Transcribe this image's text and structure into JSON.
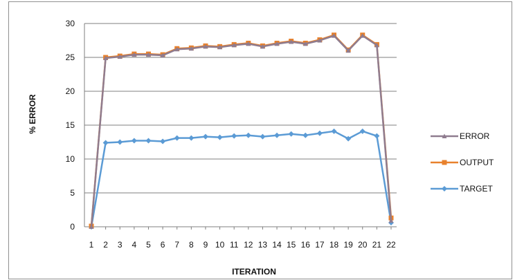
{
  "chart_data": {
    "type": "line",
    "title": "",
    "xlabel": "ITERATION",
    "ylabel": "% ERROR",
    "categories": [
      "1",
      "2",
      "3",
      "4",
      "5",
      "6",
      "7",
      "8",
      "9",
      "10",
      "11",
      "12",
      "13",
      "14",
      "15",
      "16",
      "17",
      "18",
      "19",
      "20",
      "21",
      "22"
    ],
    "ylim": [
      0,
      30
    ],
    "yticks": [
      0,
      5,
      10,
      15,
      20,
      25,
      30
    ],
    "grid": true,
    "legend_position": "right",
    "series": [
      {
        "name": "ERROR",
        "color": "#8f7c8f",
        "marker": "triangle",
        "values": [
          0,
          24.9,
          25.1,
          25.4,
          25.4,
          25.3,
          26.2,
          26.3,
          26.6,
          26.5,
          26.8,
          27.0,
          26.6,
          27.0,
          27.3,
          27.0,
          27.5,
          28.2,
          26.0,
          28.2,
          26.8,
          0.9
        ]
      },
      {
        "name": "OUTPUT",
        "color": "#e8812c",
        "marker": "square",
        "values": [
          0.1,
          25.0,
          25.2,
          25.5,
          25.5,
          25.4,
          26.3,
          26.4,
          26.7,
          26.6,
          26.9,
          27.1,
          26.7,
          27.1,
          27.4,
          27.1,
          27.6,
          28.3,
          26.1,
          28.3,
          26.9,
          1.3
        ]
      },
      {
        "name": "TARGET",
        "color": "#5b9bd5",
        "marker": "diamond",
        "values": [
          0,
          12.4,
          12.5,
          12.7,
          12.7,
          12.6,
          13.1,
          13.1,
          13.3,
          13.2,
          13.4,
          13.5,
          13.3,
          13.5,
          13.7,
          13.5,
          13.8,
          14.1,
          13.0,
          14.1,
          13.4,
          0.6
        ]
      }
    ]
  }
}
